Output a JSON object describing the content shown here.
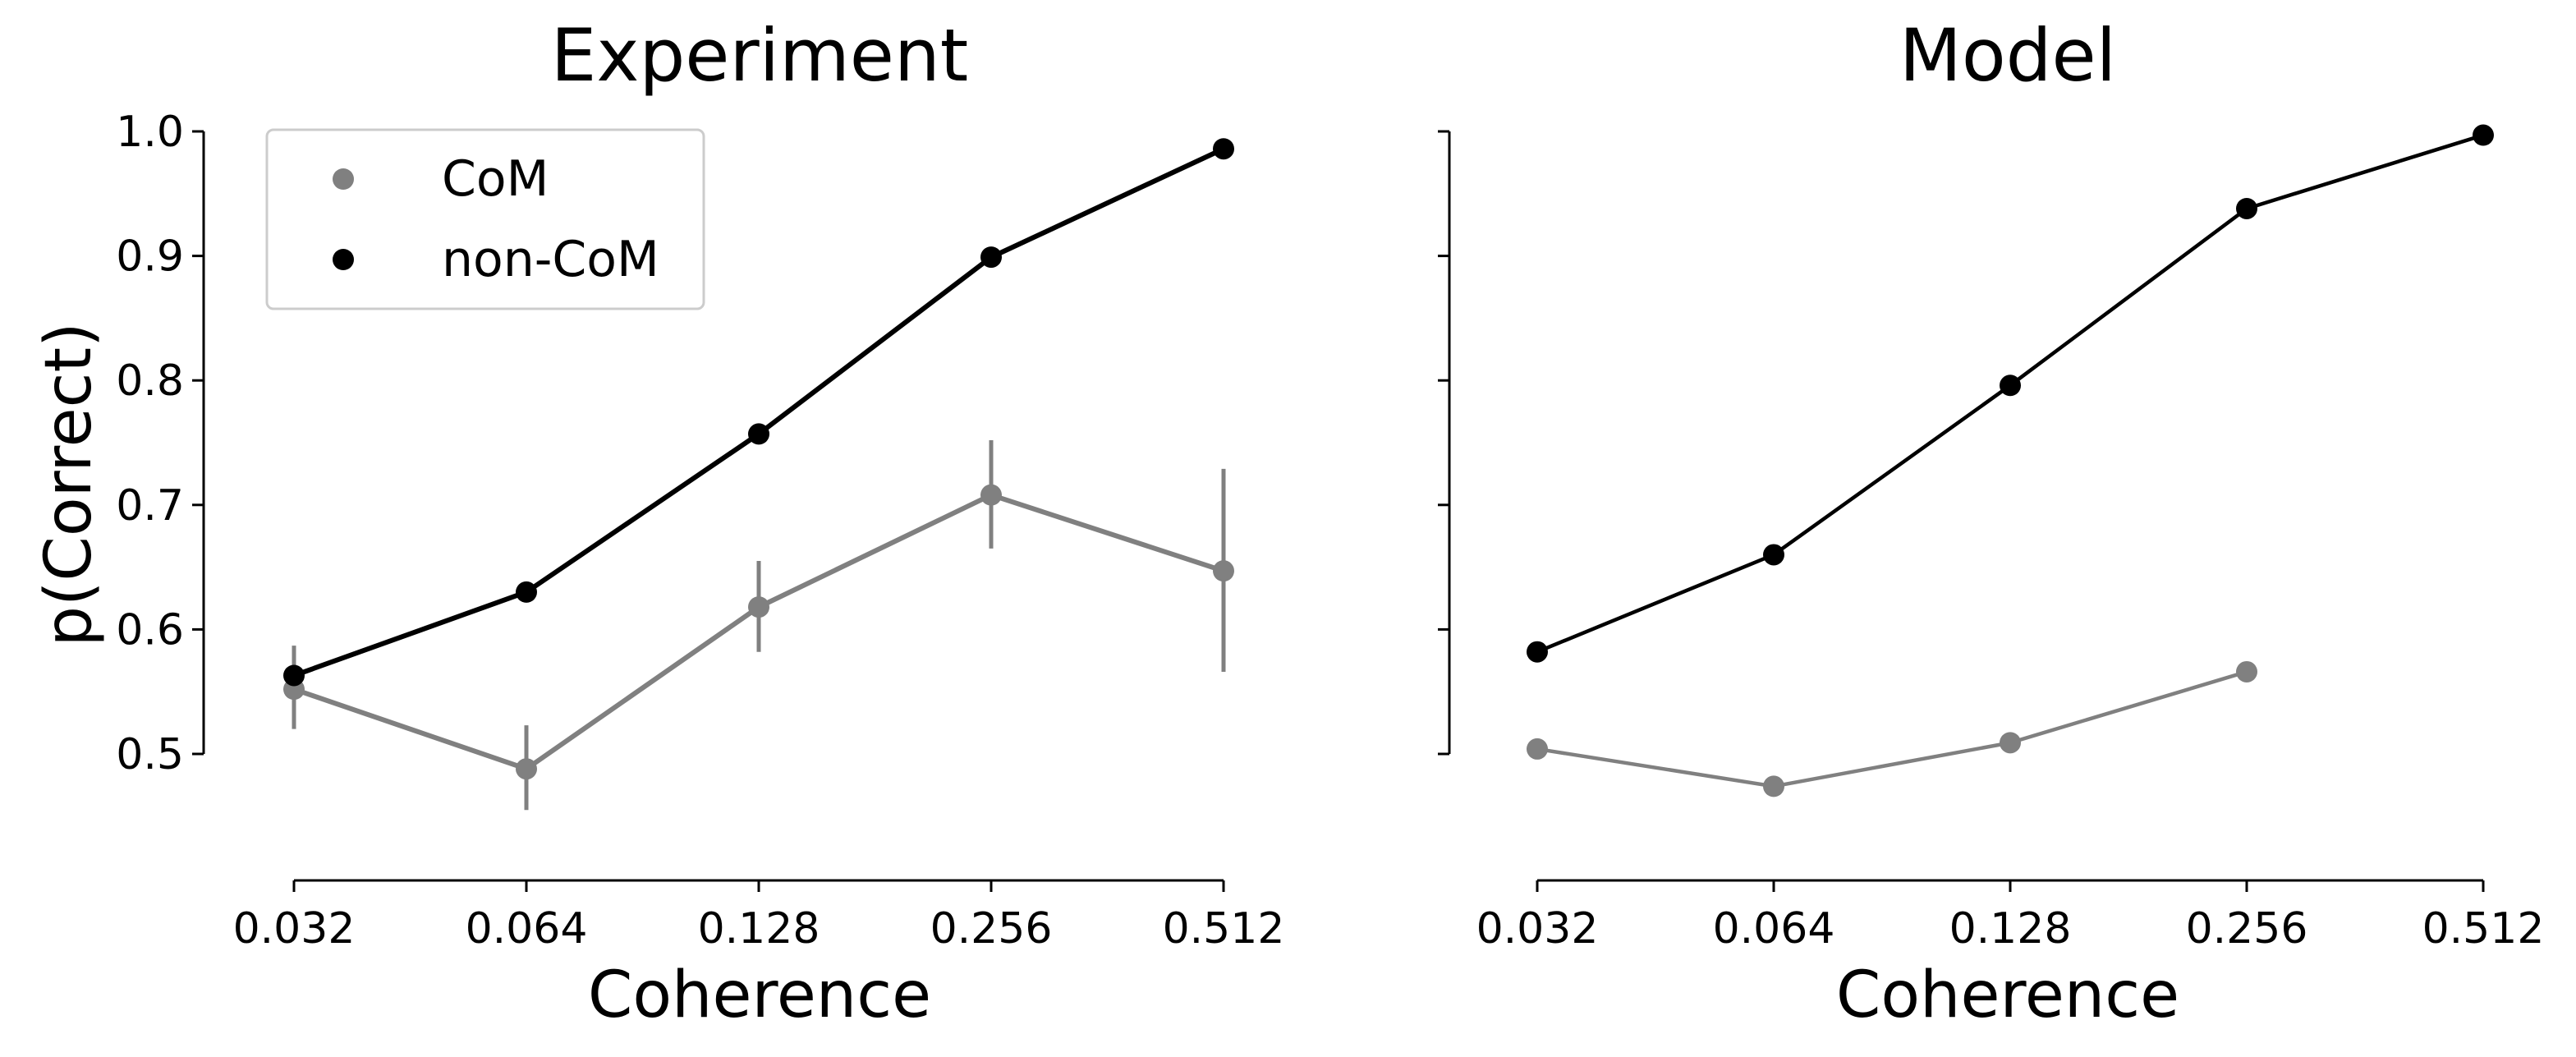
{
  "colors": {
    "com": "#808080",
    "noncom": "#000000"
  },
  "chart_data": [
    {
      "type": "line",
      "title": "Experiment",
      "xlabel": "Coherence",
      "ylabel": "p(Correct)",
      "x_scale": "log2",
      "categories": [
        "0.032",
        "0.064",
        "0.128",
        "0.256",
        "0.512"
      ],
      "yticks": [
        "0.5",
        "0.6",
        "0.7",
        "0.8",
        "0.9",
        "1.0"
      ],
      "ylim": [
        0.4,
        1.0
      ],
      "grid": false,
      "legend": {
        "placement": "top-left",
        "entries": [
          "CoM",
          "non-CoM"
        ]
      },
      "series": [
        {
          "name": "CoM",
          "color": "#808080",
          "values": [
            0.552,
            0.488,
            0.618,
            0.708,
            0.647
          ],
          "error_low": [
            0.52,
            0.455,
            0.582,
            0.665,
            0.566
          ],
          "error_high": [
            0.587,
            0.523,
            0.655,
            0.752,
            0.729
          ]
        },
        {
          "name": "non-CoM",
          "color": "#000000",
          "values": [
            0.563,
            0.63,
            0.757,
            0.899,
            0.986
          ]
        }
      ]
    },
    {
      "type": "line",
      "title": "Model",
      "xlabel": "Coherence",
      "ylabel": "",
      "x_scale": "log2",
      "categories": [
        "0.032",
        "0.064",
        "0.128",
        "0.256",
        "0.512"
      ],
      "ylim": [
        0.4,
        1.0
      ],
      "grid": false,
      "series": [
        {
          "name": "CoM",
          "color": "#808080",
          "values": [
            0.504,
            0.474,
            0.509,
            0.566,
            null
          ]
        },
        {
          "name": "non-CoM",
          "color": "#000000",
          "values": [
            0.582,
            0.66,
            0.796,
            0.938,
            0.997
          ]
        }
      ]
    }
  ]
}
